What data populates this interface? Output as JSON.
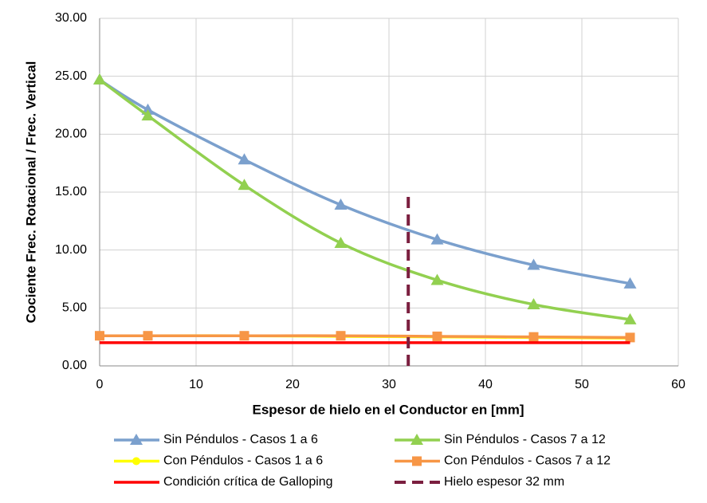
{
  "chart_data": {
    "type": "line",
    "x_label": "Espesor de hielo en el Conductor en [mm]",
    "y_label": "Cociente  Frec. Rotacional / Frec. Vertical",
    "xlim": [
      0,
      60
    ],
    "xticks": [
      0,
      10,
      20,
      30,
      40,
      50,
      60
    ],
    "ylim": [
      0,
      30
    ],
    "yticks": [
      {
        "value": 0,
        "label": "0.00"
      },
      {
        "value": 5,
        "label": "5.00"
      },
      {
        "value": 10,
        "label": "10.00"
      },
      {
        "value": 15,
        "label": "15.00"
      },
      {
        "value": 20,
        "label": "20.00"
      },
      {
        "value": 25,
        "label": "25.00"
      },
      {
        "value": 30,
        "label": "30.00"
      }
    ],
    "grid": true,
    "legend": "bottom",
    "series": [
      {
        "name": "Sin Péndulos - Casos 1 a 6",
        "color": "#7ba0cd",
        "marker": "triangle",
        "smooth": true,
        "x": [
          0,
          5,
          15,
          25,
          35,
          45,
          55
        ],
        "values": [
          24.7,
          22.1,
          17.8,
          13.9,
          10.9,
          8.7,
          7.1
        ]
      },
      {
        "name": "Sin Péndulos - Casos 7 a 12",
        "color": "#92d050",
        "marker": "triangle",
        "smooth": true,
        "x": [
          0,
          5,
          15,
          25,
          35,
          45,
          55
        ],
        "values": [
          24.7,
          21.6,
          15.6,
          10.6,
          7.4,
          5.3,
          4.0
        ]
      },
      {
        "name": "Con Péndulos - Casos 1 a 6",
        "color": "#ffff00",
        "marker": "circle",
        "smooth": true,
        "x": [
          0,
          5,
          15,
          25,
          35,
          45,
          55
        ],
        "values": [
          2.6,
          2.6,
          2.6,
          2.55,
          2.5,
          2.45,
          2.4
        ]
      },
      {
        "name": "Con Péndulos - Casos 7 a 12",
        "color": "#f79646",
        "marker": "square",
        "smooth": true,
        "x": [
          0,
          5,
          15,
          25,
          35,
          45,
          55
        ],
        "values": [
          2.6,
          2.6,
          2.6,
          2.6,
          2.55,
          2.5,
          2.45
        ]
      },
      {
        "name": "Condición crítica de Galloping",
        "color": "#ff0000",
        "marker": "none",
        "smooth": false,
        "x": [
          0,
          55
        ],
        "values": [
          2,
          2
        ]
      },
      {
        "name": "Hielo espesor 32 mm",
        "color": "#7b1f3f",
        "marker": "none",
        "smooth": false,
        "dashed": true,
        "x": [
          32,
          32
        ],
        "values": [
          0,
          15
        ]
      }
    ]
  }
}
